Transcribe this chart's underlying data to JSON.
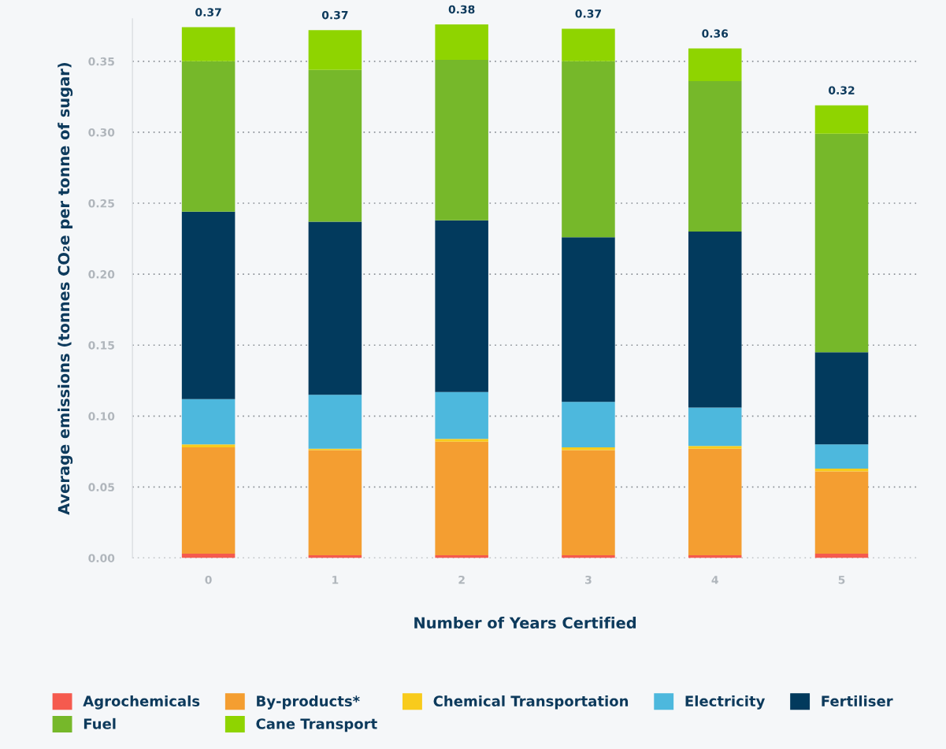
{
  "chart_data": {
    "type": "bar",
    "stacked": true,
    "xlabel": "Number of Years Certified",
    "ylabel": "Average emissions (tonnes CO₂e per tonne of sugar)",
    "categories": [
      "0",
      "1",
      "2",
      "3",
      "4",
      "5"
    ],
    "series": [
      {
        "name": "Agrochemicals",
        "color": "#f55a4e",
        "values": [
          0.003,
          0.002,
          0.002,
          0.002,
          0.002,
          0.003
        ]
      },
      {
        "name": "By-products*",
        "color": "#f49e31",
        "values": [
          0.075,
          0.074,
          0.08,
          0.074,
          0.075,
          0.058
        ]
      },
      {
        "name": "Chemical Transportation",
        "color": "#f8cb1c",
        "values": [
          0.002,
          0.001,
          0.002,
          0.002,
          0.002,
          0.002
        ]
      },
      {
        "name": "Electricity",
        "color": "#4db8dd",
        "values": [
          0.032,
          0.038,
          0.033,
          0.032,
          0.027,
          0.017
        ]
      },
      {
        "name": "Fertiliser",
        "color": "#023a5d",
        "values": [
          0.132,
          0.122,
          0.121,
          0.116,
          0.124,
          0.065
        ]
      },
      {
        "name": "Fuel",
        "color": "#76b82a",
        "values": [
          0.106,
          0.107,
          0.113,
          0.124,
          0.106,
          0.154
        ]
      },
      {
        "name": "Cane Transport",
        "color": "#8fd400",
        "values": [
          0.024,
          0.028,
          0.025,
          0.023,
          0.023,
          0.02
        ]
      }
    ],
    "totals": [
      "0.37",
      "0.37",
      "0.38",
      "0.37",
      "0.36",
      "0.32"
    ],
    "ylim": [
      0,
      0.38
    ],
    "yticks": [
      {
        "value": 0,
        "label": "0.00"
      },
      {
        "value": 0.05,
        "label": "0.05"
      },
      {
        "value": 0.1,
        "label": "0.10"
      },
      {
        "value": 0.15,
        "label": "0.15"
      },
      {
        "value": 0.2,
        "label": "0.20"
      },
      {
        "value": 0.25,
        "label": "0.25"
      },
      {
        "value": 0.3,
        "label": "0.30"
      },
      {
        "value": 0.35,
        "label": "0.35"
      }
    ],
    "grid": "y",
    "legend": "bottom"
  }
}
